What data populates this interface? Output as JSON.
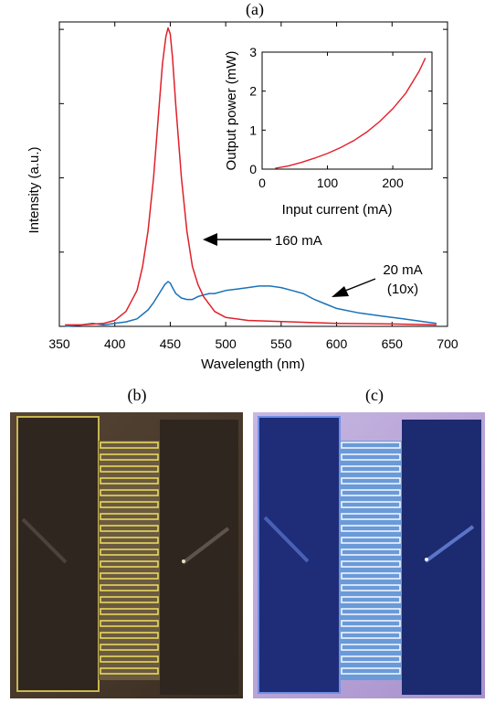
{
  "panels": {
    "a_label": "(a)",
    "b_label": "(b)",
    "c_label": "(c)"
  },
  "chart_data": [
    {
      "type": "line",
      "xlabel": "Wavelength (nm)",
      "ylabel": "Intensity (a.u.)",
      "xlim": [
        350,
        700
      ],
      "ylim": [
        0,
        1.02
      ],
      "xticks": [
        350,
        400,
        450,
        500,
        550,
        600,
        650,
        700
      ],
      "y_tick_labels_shown": false,
      "grid": false,
      "series": [
        {
          "name": "160 mA",
          "color": "#e0202a",
          "x": [
            355,
            370,
            390,
            400,
            410,
            420,
            425,
            430,
            435,
            440,
            443,
            446,
            448,
            450,
            452,
            455,
            460,
            465,
            470,
            475,
            480,
            490,
            500,
            520,
            560,
            600,
            650,
            690
          ],
          "y": [
            0.005,
            0.005,
            0.01,
            0.02,
            0.05,
            0.12,
            0.2,
            0.32,
            0.5,
            0.74,
            0.88,
            0.97,
            1.0,
            0.98,
            0.9,
            0.74,
            0.5,
            0.32,
            0.2,
            0.14,
            0.1,
            0.05,
            0.03,
            0.02,
            0.015,
            0.01,
            0.008,
            0.005
          ]
        },
        {
          "name": "20 mA",
          "color": "#1a72b8",
          "x": [
            355,
            370,
            380,
            390,
            400,
            410,
            420,
            430,
            435,
            440,
            445,
            448,
            450,
            452,
            455,
            460,
            465,
            470,
            475,
            480,
            485,
            490,
            500,
            510,
            520,
            530,
            540,
            550,
            560,
            570,
            580,
            590,
            600,
            620,
            640,
            660,
            680,
            690
          ],
          "y": [
            0.0,
            0.005,
            0.01,
            0.005,
            0.01,
            0.015,
            0.025,
            0.055,
            0.08,
            0.11,
            0.14,
            0.15,
            0.145,
            0.13,
            0.11,
            0.095,
            0.09,
            0.09,
            0.1,
            0.105,
            0.11,
            0.11,
            0.12,
            0.125,
            0.13,
            0.135,
            0.135,
            0.13,
            0.12,
            0.11,
            0.09,
            0.075,
            0.06,
            0.045,
            0.035,
            0.025,
            0.015,
            0.01
          ]
        }
      ],
      "annotations": [
        {
          "text": "160 mA",
          "arrow_to_x": 470,
          "arrow_to_y": 0.32
        },
        {
          "text": "20 mA",
          "text2": "(10x)",
          "arrow_to_x": 592,
          "arrow_to_y": 0.1
        }
      ]
    },
    {
      "type": "line",
      "xlabel": "Input current (mA)",
      "ylabel": "Output power (mW)",
      "xlim": [
        0,
        260
      ],
      "ylim": [
        0,
        3
      ],
      "xticks": [
        0,
        100,
        200
      ],
      "yticks": [
        0,
        1,
        2,
        3
      ],
      "grid": false,
      "series": [
        {
          "color": "#e0202a",
          "x": [
            20,
            40,
            60,
            80,
            100,
            120,
            140,
            160,
            180,
            200,
            220,
            240,
            250
          ],
          "y": [
            0.02,
            0.08,
            0.17,
            0.28,
            0.4,
            0.55,
            0.73,
            0.95,
            1.22,
            1.55,
            1.95,
            2.5,
            2.85
          ]
        }
      ]
    }
  ],
  "images": {
    "b": {
      "background": "#4a3a2b",
      "pad_color": "#2f2620",
      "finger_color": "#e8d860",
      "gap_color": "#6a5a40"
    },
    "c": {
      "background": "#b9a6d6",
      "pad_color": "#1c2a70",
      "finger_color": "#eef4ff",
      "gap_color": "#6a9ad8"
    }
  }
}
